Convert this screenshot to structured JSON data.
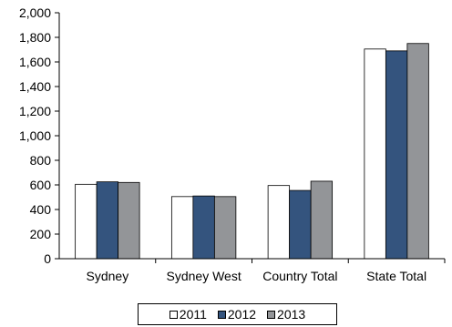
{
  "chart_data": {
    "type": "bar",
    "categories": [
      "Sydney",
      "Sydney West",
      "Country Total",
      "State Total"
    ],
    "series": [
      {
        "name": "2011",
        "color": "#ffffff",
        "values": [
          605,
          505,
          595,
          1705
        ]
      },
      {
        "name": "2012",
        "color": "#34547e",
        "values": [
          625,
          510,
          555,
          1690
        ]
      },
      {
        "name": "2013",
        "color": "#939598",
        "values": [
          620,
          505,
          630,
          1750
        ]
      }
    ],
    "yticks": [
      "0",
      "200",
      "400",
      "600",
      "800",
      "1,000",
      "1,200",
      "1,400",
      "1,600",
      "1,800",
      "2,000"
    ],
    "ylim": [
      0,
      2000
    ],
    "grid": false,
    "legend_position": "bottom"
  }
}
